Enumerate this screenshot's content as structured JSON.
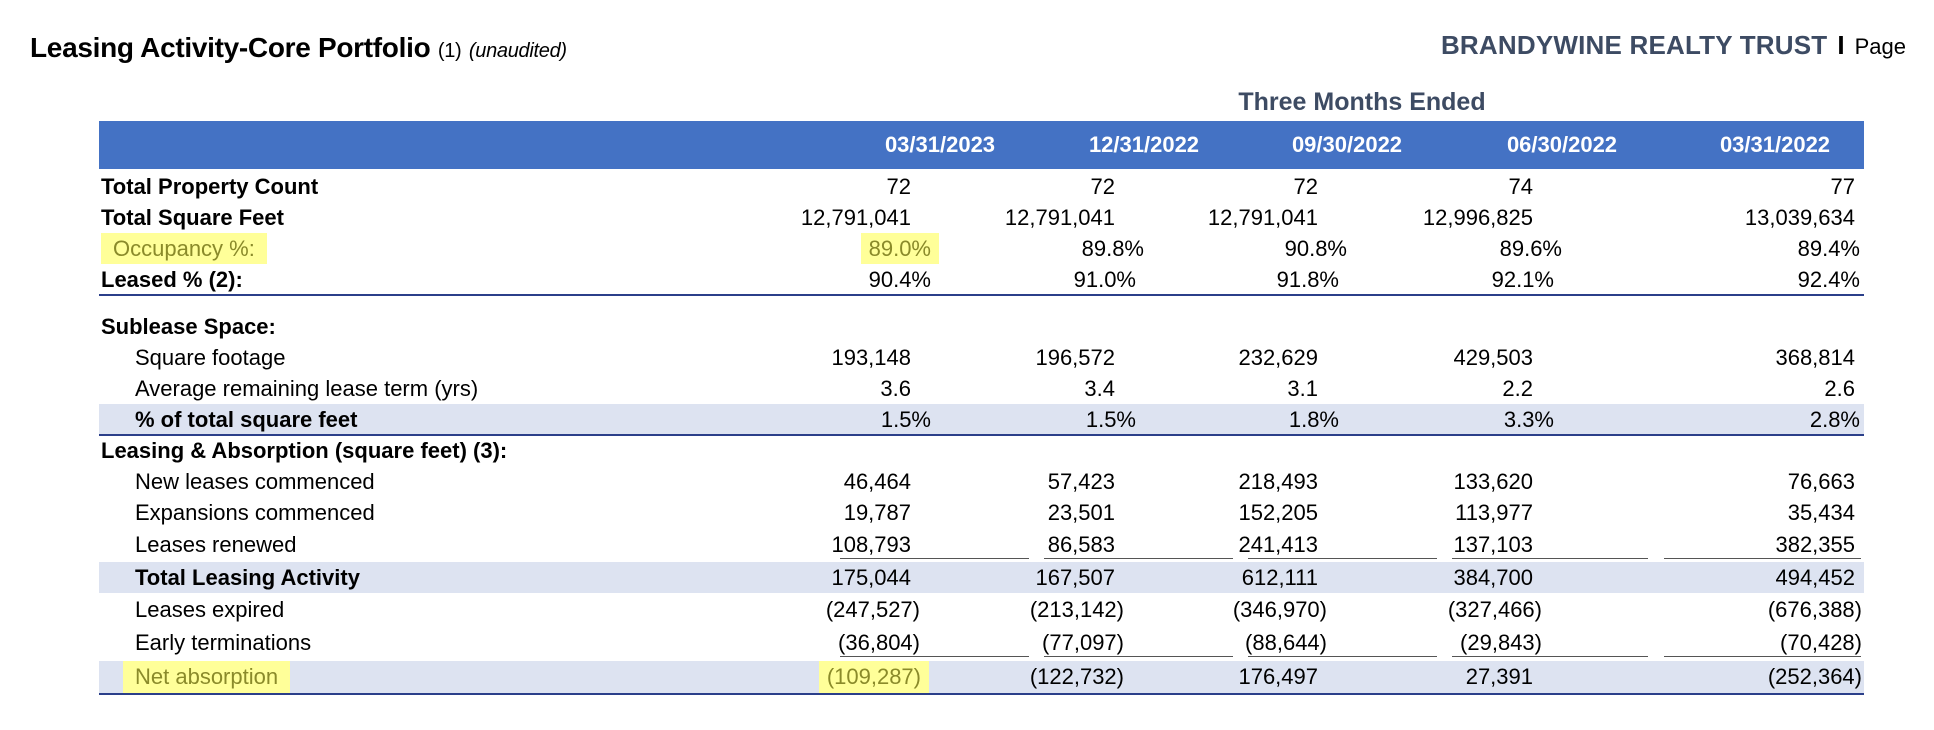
{
  "header": {
    "title": "Leasing Activity-Core Portfolio",
    "title_footnote": "(1)",
    "title_note": "(unaudited)",
    "brand": "BRANDYWINE REALTY TRUST",
    "separator": "I",
    "page_label": "Page"
  },
  "table": {
    "period_label": "Three Months Ended",
    "columns": [
      "03/31/2023",
      "12/31/2022",
      "09/30/2022",
      "06/30/2022",
      "03/31/2022"
    ],
    "rows": {
      "property_count": {
        "label": "Total Property Count",
        "values": [
          "72",
          "72",
          "72",
          "74",
          "77"
        ]
      },
      "square_feet": {
        "label": "Total Square Feet",
        "values": [
          "12,791,041",
          "12,791,041",
          "12,791,041",
          "12,996,825",
          "13,039,634"
        ]
      },
      "occupancy": {
        "label": "Occupancy %:",
        "values": [
          "89.0%",
          "89.8%",
          "90.8%",
          "89.6%",
          "89.4%"
        ]
      },
      "leased": {
        "label": "Leased % (2):",
        "values": [
          "90.4%",
          "91.0%",
          "91.8%",
          "92.1%",
          "92.4%"
        ]
      },
      "sublease_header": {
        "label": "Sublease Space:"
      },
      "sublease_sqft": {
        "label": "Square footage",
        "values": [
          "193,148",
          "196,572",
          "232,629",
          "429,503",
          "368,814"
        ]
      },
      "sublease_term": {
        "label": "Average remaining lease term (yrs)",
        "values": [
          "3.6",
          "3.4",
          "3.1",
          "2.2",
          "2.6"
        ]
      },
      "sublease_pct": {
        "label": "% of total square feet",
        "values": [
          "1.5%",
          "1.5%",
          "1.8%",
          "3.3%",
          "2.8%"
        ]
      },
      "leasing_header": {
        "label": "Leasing & Absorption (square feet) (3):"
      },
      "new_leases": {
        "label": "New leases commenced",
        "values": [
          "46,464",
          "57,423",
          "218,493",
          "133,620",
          "76,663"
        ]
      },
      "expansions": {
        "label": "Expansions commenced",
        "values": [
          "19,787",
          "23,501",
          "152,205",
          "113,977",
          "35,434"
        ]
      },
      "renewed": {
        "label": "Leases renewed",
        "values": [
          "108,793",
          "86,583",
          "241,413",
          "137,103",
          "382,355"
        ]
      },
      "total_leasing": {
        "label": "Total Leasing Activity",
        "values": [
          "175,044",
          "167,507",
          "612,111",
          "384,700",
          "494,452"
        ]
      },
      "expired": {
        "label": "Leases expired",
        "values": [
          "(247,527)",
          "(213,142)",
          "(346,970)",
          "(327,466)",
          "(676,388)"
        ]
      },
      "early_term": {
        "label": "Early terminations",
        "values": [
          "(36,804)",
          "(77,097)",
          "(88,644)",
          "(29,843)",
          "(70,428)"
        ]
      },
      "net_absorption": {
        "label": "Net absorption",
        "values": [
          "(109,287)",
          "(122,732)",
          "176,497",
          "27,391",
          "(252,364)"
        ]
      }
    }
  },
  "colors": {
    "header_fill": "#4472c4",
    "row_shade": "#dde3f1",
    "highlight": "#ffff99",
    "brand_text": "#3d4b63"
  }
}
